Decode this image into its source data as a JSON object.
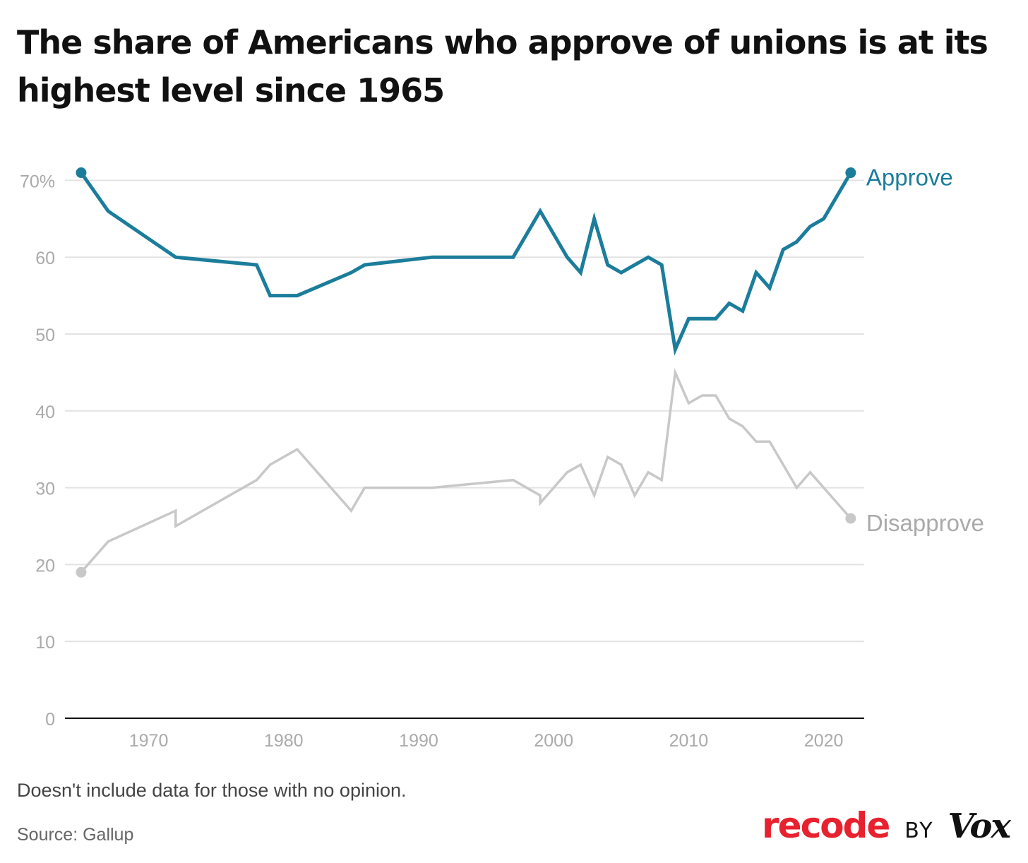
{
  "title": "The share of Americans who approve of unions is at its highest level since 1965",
  "note": "Doesn't include data for those with no opinion.",
  "source": "Source: Gallup",
  "brand": {
    "recode": "recode",
    "by": "BY",
    "vox": "Vox"
  },
  "colors": {
    "approve": "#1b7d9b",
    "disapprove": "#c8c8c8",
    "grid": "#e3e3e3",
    "tick": "#aaaaaa",
    "axis": "#111111"
  },
  "chart_data": {
    "type": "line",
    "title": "The share of Americans who approve of unions is at its highest level since 1965",
    "xlabel": "",
    "ylabel": "",
    "xlim": [
      1963.8,
      2023
    ],
    "ylim": [
      0,
      72
    ],
    "x_ticks": [
      1970,
      1980,
      1990,
      2000,
      2010,
      2020
    ],
    "y_ticks": [
      0,
      10,
      20,
      30,
      40,
      50,
      60,
      70
    ],
    "y_tick_labels": [
      "0",
      "10",
      "20",
      "30",
      "40",
      "50",
      "60",
      "70%"
    ],
    "grid": true,
    "legend": "inline labels at line ends (right)",
    "series": [
      {
        "name": "Approve",
        "color": "#1b7d9b",
        "points": [
          [
            1965,
            71
          ],
          [
            1967,
            66
          ],
          [
            1972,
            60
          ],
          [
            1978,
            59
          ],
          [
            1979,
            55
          ],
          [
            1981,
            55
          ],
          [
            1985,
            58
          ],
          [
            1986,
            59
          ],
          [
            1991,
            60
          ],
          [
            1997,
            60
          ],
          [
            1999,
            66
          ],
          [
            2001,
            60
          ],
          [
            2002,
            58
          ],
          [
            2003,
            65
          ],
          [
            2004,
            59
          ],
          [
            2005,
            58
          ],
          [
            2007,
            60
          ],
          [
            2008,
            59
          ],
          [
            2009,
            48
          ],
          [
            2010,
            52
          ],
          [
            2012,
            52
          ],
          [
            2013,
            54
          ],
          [
            2014,
            53
          ],
          [
            2015,
            58
          ],
          [
            2016,
            56
          ],
          [
            2017,
            61
          ],
          [
            2018,
            62
          ],
          [
            2019,
            64
          ],
          [
            2020,
            65
          ],
          [
            2022,
            71
          ]
        ]
      },
      {
        "name": "Disapprove",
        "color": "#c8c8c8",
        "points": [
          [
            1965,
            19
          ],
          [
            1967,
            23
          ],
          [
            1972,
            27
          ],
          [
            1972,
            25
          ],
          [
            1978,
            31
          ],
          [
            1979,
            33
          ],
          [
            1981,
            35
          ],
          [
            1985,
            27
          ],
          [
            1986,
            30
          ],
          [
            1991,
            30
          ],
          [
            1997,
            31
          ],
          [
            1999,
            29
          ],
          [
            1999,
            28
          ],
          [
            2001,
            32
          ],
          [
            2002,
            33
          ],
          [
            2003,
            29
          ],
          [
            2004,
            34
          ],
          [
            2005,
            33
          ],
          [
            2006,
            29
          ],
          [
            2007,
            32
          ],
          [
            2008,
            31
          ],
          [
            2009,
            45
          ],
          [
            2010,
            41
          ],
          [
            2011,
            42
          ],
          [
            2012,
            42
          ],
          [
            2013,
            39
          ],
          [
            2014,
            38
          ],
          [
            2015,
            36
          ],
          [
            2016,
            36
          ],
          [
            2018,
            30
          ],
          [
            2019,
            32
          ],
          [
            2022,
            26
          ]
        ]
      }
    ]
  }
}
